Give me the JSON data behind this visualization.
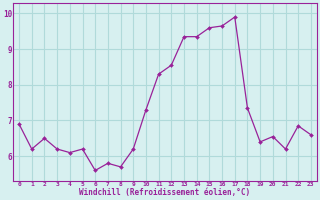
{
  "x": [
    0,
    1,
    2,
    3,
    4,
    5,
    6,
    7,
    8,
    9,
    10,
    11,
    12,
    13,
    14,
    15,
    16,
    17,
    18,
    19,
    20,
    21,
    22,
    23
  ],
  "y": [
    6.9,
    6.2,
    6.5,
    6.2,
    6.1,
    6.2,
    5.6,
    5.8,
    5.7,
    6.2,
    7.3,
    8.3,
    8.55,
    9.35,
    9.35,
    9.6,
    9.65,
    9.9,
    7.35,
    6.4,
    6.55,
    6.2,
    6.85,
    6.6
  ],
  "line_color": "#992299",
  "marker": "D",
  "marker_size": 2.0,
  "bg_color": "#d7f0f0",
  "grid_color": "#b0dada",
  "xlabel": "Windchill (Refroidissement éolien,°C)",
  "xlabel_color": "#992299",
  "tick_color": "#992299",
  "ylim": [
    5.3,
    10.3
  ],
  "xlim": [
    -0.5,
    23.5
  ],
  "yticks": [
    6,
    7,
    8,
    9,
    10
  ],
  "xticks": [
    0,
    1,
    2,
    3,
    4,
    5,
    6,
    7,
    8,
    9,
    10,
    11,
    12,
    13,
    14,
    15,
    16,
    17,
    18,
    19,
    20,
    21,
    22,
    23
  ],
  "spine_color": "#992299",
  "figsize": [
    3.2,
    2.0
  ],
  "dpi": 100
}
